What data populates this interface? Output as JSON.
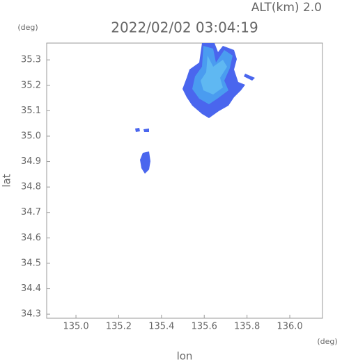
{
  "chart_data": {
    "type": "map",
    "title": "2022/02/02 03:04:19",
    "subtitle": "ALT(km) 2.0",
    "y_unit": "(deg)",
    "x_unit": "(deg)",
    "xlabel": "lon",
    "ylabel": "lat",
    "xlim": [
      134.863,
      136.153
    ],
    "ylim": [
      34.284,
      35.366
    ],
    "xticks": [
      {
        "value": 135.0,
        "label": "135.0"
      },
      {
        "value": 135.2,
        "label": "135.2"
      },
      {
        "value": 135.4,
        "label": "135.4"
      },
      {
        "value": 135.6,
        "label": "135.6"
      },
      {
        "value": 135.8,
        "label": "135.8"
      },
      {
        "value": 136.0,
        "label": "136.0"
      }
    ],
    "yticks": [
      {
        "value": 34.3,
        "label": "34.3"
      },
      {
        "value": 34.4,
        "label": "34.4"
      },
      {
        "value": 34.5,
        "label": "34.5"
      },
      {
        "value": 34.6,
        "label": "34.6"
      },
      {
        "value": 34.7,
        "label": "34.7"
      },
      {
        "value": 34.8,
        "label": "34.8"
      },
      {
        "value": 34.9,
        "label": "34.9"
      },
      {
        "value": 35.0,
        "label": "35.0"
      },
      {
        "value": 35.1,
        "label": "35.1"
      },
      {
        "value": 35.2,
        "label": "35.2"
      },
      {
        "value": 35.3,
        "label": "35.3"
      }
    ]
  }
}
